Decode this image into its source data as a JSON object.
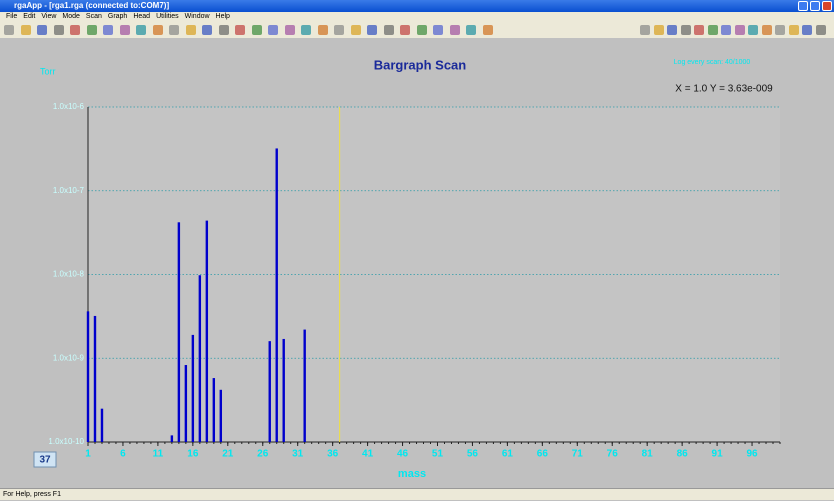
{
  "window": {
    "title": "rgaApp - [rga1.rga (connected to:COM7)]",
    "menu": [
      "File",
      "Edit",
      "View",
      "Mode",
      "Scan",
      "Graph",
      "Head",
      "Utilities",
      "Window",
      "Help"
    ],
    "status": "For Help, press F1"
  },
  "chart_data": {
    "type": "bar",
    "title": "Bargraph Scan",
    "y_label": "Torr",
    "x_label": "mass",
    "log_note": "Log every scan: 40/1000",
    "readout": "X = 1.0 Y = 3.63e-009",
    "cursor": 37,
    "x": [
      1,
      2,
      3,
      13,
      14,
      15,
      16,
      17,
      18,
      19,
      20,
      27,
      28,
      29,
      32
    ],
    "values": [
      3.63e-09,
      3.2e-09,
      2.5e-10,
      1.2e-10,
      4.2e-08,
      8.3e-10,
      1.9e-09,
      9.8e-09,
      4.4e-08,
      5.8e-10,
      4.2e-10,
      1.6e-09,
      3.2e-07,
      1.7e-09,
      2.2e-09
    ],
    "color": "#0000cc",
    "log_y": true,
    "grid": true,
    "xlim": [
      1,
      100
    ],
    "xticks": [
      1,
      6,
      11,
      16,
      21,
      26,
      31,
      36,
      41,
      46,
      51,
      56,
      61,
      66,
      71,
      76,
      81,
      86,
      91,
      96
    ],
    "ylim": [
      1e-10,
      1e-06
    ],
    "yticks": [
      {
        "value": 1e-10,
        "label": "1.0x10-10"
      },
      {
        "value": 1e-09,
        "label": "1.0x10-9"
      },
      {
        "value": 1e-08,
        "label": "1.0x10-8"
      },
      {
        "value": 1e-07,
        "label": "1.0x10-7"
      },
      {
        "value": 1e-06,
        "label": "1.0x10-6"
      }
    ]
  }
}
